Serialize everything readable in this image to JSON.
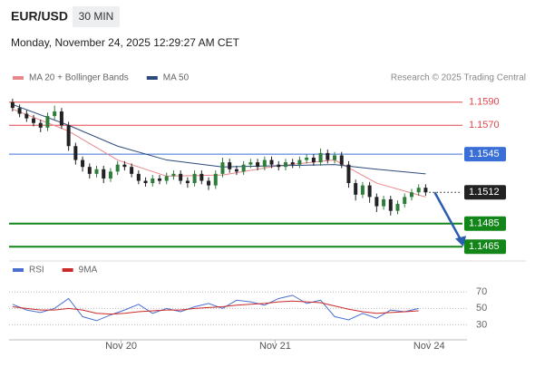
{
  "chart_data": {
    "type": "candlestick",
    "title": "EUR/USD",
    "timeframe": "30 MIN",
    "subtitle": "Monday, November 24, 2025 12:29:27 AM CET",
    "credit": "Research © 2025 Trading Central",
    "up_color": "#2f7d3b",
    "down_color": "#222222",
    "xlim": [
      -0.5,
      64
    ],
    "xticks": [
      {
        "value": 15.5,
        "label": "Nov 20"
      },
      {
        "value": 37.5,
        "label": "Nov 21"
      },
      {
        "value": 59.5,
        "label": "Nov 24"
      }
    ],
    "ylim": [
      1.1455,
      1.16
    ],
    "open": [
      1.159,
      1.1585,
      1.158,
      1.1576,
      1.1572,
      1.1568,
      1.1578,
      1.1582,
      1.157,
      1.1552,
      1.154,
      1.1534,
      1.1528,
      1.1532,
      1.1524,
      1.153,
      1.1536,
      1.1534,
      1.1528,
      1.1522,
      1.152,
      1.1524,
      1.1522,
      1.1526,
      1.1528,
      1.1522,
      1.152,
      1.1528,
      1.1522,
      1.1518,
      1.1528,
      1.1538,
      1.1532,
      1.153,
      1.1536,
      1.1538,
      1.1534,
      1.154,
      1.1536,
      1.1534,
      1.1538,
      1.1536,
      1.154,
      1.1542,
      1.1538,
      1.1546,
      1.154,
      1.1544,
      1.1536,
      1.152,
      1.151,
      1.1518,
      1.1508,
      1.15,
      1.1506,
      1.1496,
      1.1502,
      1.1508,
      1.1512,
      1.1516
    ],
    "high": [
      1.1593,
      1.1588,
      1.1583,
      1.1579,
      1.1575,
      1.1581,
      1.1587,
      1.1585,
      1.1573,
      1.1555,
      1.1543,
      1.1537,
      1.1535,
      1.1535,
      1.1533,
      1.1539,
      1.1539,
      1.1537,
      1.1531,
      1.1525,
      1.1527,
      1.1527,
      1.1529,
      1.1531,
      1.1531,
      1.1525,
      1.1531,
      1.1531,
      1.1525,
      1.1531,
      1.1542,
      1.1541,
      1.1535,
      1.1539,
      1.1541,
      1.1541,
      1.1543,
      1.1543,
      1.1539,
      1.1541,
      1.1541,
      1.1543,
      1.1545,
      1.1545,
      1.155,
      1.1549,
      1.1547,
      1.1547,
      1.1539,
      1.1523,
      1.1521,
      1.1521,
      1.1511,
      1.1509,
      1.1509,
      1.1505,
      1.1511,
      1.1515,
      1.1519,
      1.1519
    ],
    "low": [
      1.1582,
      1.1577,
      1.1573,
      1.1569,
      1.1564,
      1.1565,
      1.1575,
      1.1567,
      1.1548,
      1.1536,
      1.153,
      1.1524,
      1.1525,
      1.152,
      1.1521,
      1.1527,
      1.1531,
      1.1525,
      1.1519,
      1.1517,
      1.1517,
      1.1519,
      1.1519,
      1.1523,
      1.1519,
      1.1516,
      1.1517,
      1.1519,
      1.1514,
      1.1515,
      1.1525,
      1.1529,
      1.1527,
      1.1527,
      1.1533,
      1.1531,
      1.1531,
      1.1533,
      1.1531,
      1.1531,
      1.1533,
      1.1533,
      1.1537,
      1.1535,
      1.1535,
      1.1537,
      1.1537,
      1.1533,
      1.1516,
      1.1505,
      1.1507,
      1.1503,
      1.1495,
      1.1497,
      1.1492,
      1.1493,
      1.1499,
      1.1505,
      1.1509,
      1.1509
    ],
    "close": [
      1.1585,
      1.158,
      1.1576,
      1.1572,
      1.1568,
      1.1578,
      1.1582,
      1.157,
      1.1552,
      1.154,
      1.1534,
      1.1528,
      1.1532,
      1.1524,
      1.153,
      1.1536,
      1.1534,
      1.1528,
      1.1522,
      1.152,
      1.1524,
      1.1522,
      1.1526,
      1.1528,
      1.1522,
      1.152,
      1.1528,
      1.1522,
      1.1518,
      1.1528,
      1.1538,
      1.1532,
      1.153,
      1.1536,
      1.1538,
      1.1534,
      1.154,
      1.1536,
      1.1534,
      1.1538,
      1.1536,
      1.154,
      1.1542,
      1.1538,
      1.1546,
      1.154,
      1.1544,
      1.1536,
      1.152,
      1.151,
      1.1518,
      1.1508,
      1.15,
      1.1506,
      1.1496,
      1.1502,
      1.1508,
      1.1512,
      1.1516,
      1.1512
    ],
    "series": [
      {
        "name": "MA 20 + Bollinger Bands",
        "color": "#e8868b",
        "x": [
          0,
          8,
          15,
          22,
          30,
          38,
          46,
          52,
          59
        ],
        "values": [
          1.1584,
          1.1565,
          1.154,
          1.1526,
          1.1527,
          1.1535,
          1.154,
          1.152,
          1.1508
        ]
      },
      {
        "name": "MA 50",
        "color": "#2c4a7c",
        "x": [
          0,
          8,
          15,
          22,
          30,
          38,
          46,
          52,
          59
        ],
        "values": [
          1.1588,
          1.157,
          1.1552,
          1.154,
          1.1534,
          1.1535,
          1.1536,
          1.1532,
          1.1528
        ]
      }
    ],
    "levels": [
      {
        "value": 1.159,
        "label": "1.1590",
        "color": "#e0474c",
        "style": "text"
      },
      {
        "value": 1.157,
        "label": "1.1570",
        "color": "#e0474c",
        "style": "text"
      },
      {
        "value": 1.1545,
        "label": "1.1545",
        "color": "#3a6fd8",
        "style": "box"
      },
      {
        "value": 1.1512,
        "label": "1.1512",
        "color": "#222222",
        "style": "current"
      },
      {
        "value": 1.1485,
        "label": "1.1485",
        "color": "#13861a",
        "style": "box"
      },
      {
        "value": 1.1465,
        "label": "1.1465",
        "color": "#13861a",
        "style": "box"
      }
    ],
    "forecast_target": 1.1465,
    "forecast_color": "#2a5db0",
    "rsi": {
      "ylim": [
        15,
        78
      ],
      "yticks": [
        30,
        50,
        70
      ],
      "x": [
        0,
        2,
        4,
        6,
        8,
        10,
        12,
        14,
        16,
        18,
        20,
        22,
        24,
        26,
        28,
        30,
        32,
        34,
        36,
        38,
        40,
        42,
        44,
        46,
        48,
        50,
        52,
        54,
        56,
        58
      ],
      "series": [
        {
          "name": "RSI",
          "color": "#4a6fd0",
          "values": [
            55,
            48,
            45,
            50,
            62,
            40,
            35,
            42,
            48,
            55,
            44,
            50,
            46,
            52,
            56,
            50,
            60,
            58,
            54,
            62,
            66,
            56,
            60,
            40,
            36,
            44,
            38,
            48,
            46,
            50
          ]
        },
        {
          "name": "9MA",
          "color": "#cc2a2a",
          "values": [
            52,
            50,
            48,
            48,
            50,
            48,
            44,
            43,
            44,
            46,
            47,
            48,
            48,
            50,
            51,
            52,
            54,
            55,
            56,
            58,
            59,
            58,
            57,
            53,
            49,
            46,
            44,
            45,
            46,
            47
          ]
        }
      ]
    }
  }
}
